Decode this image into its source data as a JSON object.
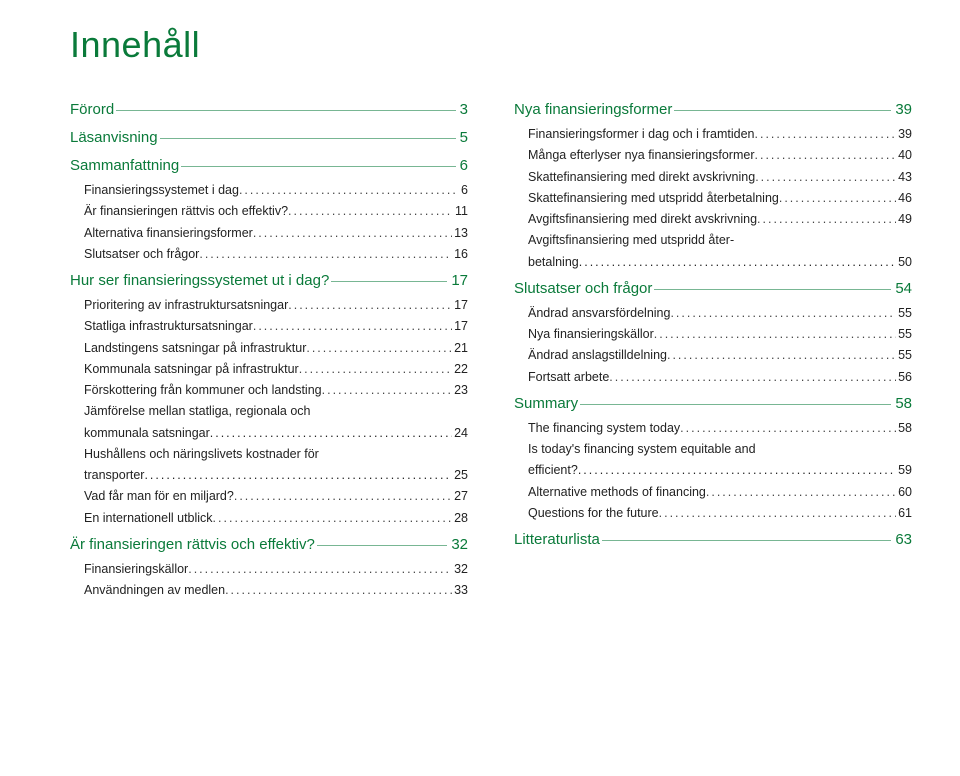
{
  "title": "Innehåll",
  "colors": {
    "accent": "#0a7a3a",
    "text": "#222222",
    "background": "#ffffff"
  },
  "typography": {
    "title_fontsize": 36,
    "section_fontsize": 15,
    "sub_fontsize": 12.5,
    "font_family": "Verdana"
  },
  "left": [
    {
      "type": "section",
      "label": "Förord",
      "page": "3"
    },
    {
      "type": "section",
      "label": "Läsanvisning",
      "page": "5"
    },
    {
      "type": "section",
      "label": "Sammanfattning",
      "page": "6"
    },
    {
      "type": "sub",
      "label": "Finansieringssystemet i dag",
      "page": "6"
    },
    {
      "type": "sub",
      "label": "Är finansieringen rättvis och effektiv?",
      "page": "11"
    },
    {
      "type": "sub",
      "label": "Alternativa finansieringsformer",
      "page": "13"
    },
    {
      "type": "sub",
      "label": "Slutsatser och frågor",
      "page": "16"
    },
    {
      "type": "section",
      "label": "Hur ser finansieringssystemet ut i dag?",
      "page": "17"
    },
    {
      "type": "sub",
      "label": "Prioritering av infrastruktursatsningar",
      "page": "17"
    },
    {
      "type": "sub",
      "label": "Statliga infrastruktursatsningar",
      "page": "17"
    },
    {
      "type": "sub",
      "label": "Landstingens satsningar på infrastruktur",
      "page": "21"
    },
    {
      "type": "sub",
      "label": "Kommunala satsningar på infrastruktur",
      "page": "22"
    },
    {
      "type": "sub",
      "label": "Förskottering från kommuner och landsting",
      "page": "23"
    },
    {
      "type": "subwrap",
      "first": "Jämförelse mellan statliga, regionala och",
      "last": "kommunala satsningar",
      "page": "24"
    },
    {
      "type": "subwrap",
      "first": "Hushållens och näringslivets kostnader för",
      "last": "transporter",
      "page": "25"
    },
    {
      "type": "sub",
      "label": "Vad får man för en miljard?",
      "page": "27"
    },
    {
      "type": "sub",
      "label": "En internationell utblick",
      "page": "28"
    },
    {
      "type": "section",
      "label": "Är finansieringen rättvis och effektiv?",
      "page": "32"
    },
    {
      "type": "sub",
      "label": "Finansieringskällor",
      "page": "32"
    },
    {
      "type": "sub",
      "label": "Användningen av medlen",
      "page": "33"
    }
  ],
  "right": [
    {
      "type": "section",
      "label": "Nya finansieringsformer",
      "page": "39"
    },
    {
      "type": "sub",
      "label": "Finansieringsformer i dag och i framtiden",
      "page": "39"
    },
    {
      "type": "sub",
      "label": "Många efterlyser nya finansieringsformer",
      "page": "40"
    },
    {
      "type": "sub",
      "label": "Skattefinansiering med direkt avskrivning",
      "page": "43"
    },
    {
      "type": "sub",
      "label": "Skattefinansiering med utspridd återbetalning",
      "page": "46"
    },
    {
      "type": "sub",
      "label": "Avgiftsfinansiering med direkt avskrivning",
      "page": "49"
    },
    {
      "type": "subwrap",
      "first": "Avgiftsfinansiering med utspridd åter-",
      "last": "betalning",
      "page": "50"
    },
    {
      "type": "section",
      "label": "Slutsatser och frågor",
      "page": "54"
    },
    {
      "type": "sub",
      "label": "Ändrad ansvarsfördelning",
      "page": "55"
    },
    {
      "type": "sub",
      "label": "Nya finansieringskällor",
      "page": "55"
    },
    {
      "type": "sub",
      "label": "Ändrad anslagstilldelning",
      "page": "55"
    },
    {
      "type": "sub",
      "label": "Fortsatt arbete",
      "page": "56"
    },
    {
      "type": "section",
      "label": "Summary",
      "page": "58"
    },
    {
      "type": "sub",
      "label": "The financing system today",
      "page": "58"
    },
    {
      "type": "subwrap",
      "first": "Is today's financing system equitable and",
      "last": "efficient?",
      "page": "59"
    },
    {
      "type": "sub",
      "label": "Alternative methods of financing",
      "page": "60"
    },
    {
      "type": "sub",
      "label": "Questions for the future",
      "page": "61"
    },
    {
      "type": "section",
      "label": "Litteraturlista",
      "page": "63"
    }
  ]
}
